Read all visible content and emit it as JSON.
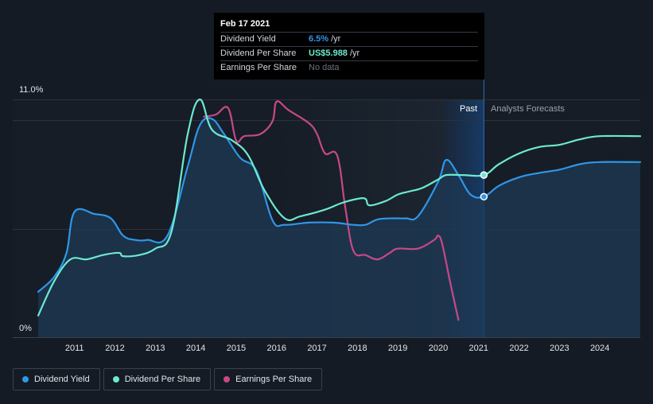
{
  "chart_data": {
    "type": "line",
    "title": "",
    "y_top_label": "11.0%",
    "y_bottom_label": "0%",
    "ylim": [
      0,
      11
    ],
    "xlim": [
      2010.1,
      2025.0
    ],
    "x_ticks": [
      "2011",
      "2012",
      "2013",
      "2014",
      "2015",
      "2016",
      "2017",
      "2018",
      "2019",
      "2020",
      "2021",
      "2022",
      "2023",
      "2024"
    ],
    "past_label": "Past",
    "forecast_label": "Analysts Forecasts",
    "forecast_start": 2020.15,
    "current_date": 2021.13,
    "colors": {
      "dividend_yield": "#2f97e8",
      "dividend_per_share": "#6de9d0",
      "earnings_per_share": "#c74887",
      "area_fill": "#1d3a55",
      "forecast_band": "#173a63"
    },
    "series": [
      {
        "name": "Dividend Yield",
        "key": "dividend_yield",
        "points": [
          [
            2010.1,
            2.1
          ],
          [
            2010.5,
            2.8
          ],
          [
            2010.8,
            3.9
          ],
          [
            2011.0,
            5.8
          ],
          [
            2011.5,
            5.7
          ],
          [
            2011.9,
            5.5
          ],
          [
            2012.2,
            4.7
          ],
          [
            2012.5,
            4.5
          ],
          [
            2012.8,
            4.5
          ],
          [
            2013.3,
            4.7
          ],
          [
            2013.8,
            7.9
          ],
          [
            2014.1,
            9.8
          ],
          [
            2014.4,
            10.1
          ],
          [
            2014.7,
            9.4
          ],
          [
            2015.1,
            8.3
          ],
          [
            2015.5,
            7.7
          ],
          [
            2015.9,
            5.4
          ],
          [
            2016.2,
            5.2
          ],
          [
            2016.8,
            5.3
          ],
          [
            2017.4,
            5.3
          ],
          [
            2017.9,
            5.2
          ],
          [
            2018.2,
            5.2
          ],
          [
            2018.5,
            5.45
          ],
          [
            2018.9,
            5.5
          ],
          [
            2019.2,
            5.5
          ],
          [
            2019.5,
            5.6
          ],
          [
            2020.0,
            7.2
          ],
          [
            2020.2,
            8.2
          ],
          [
            2020.5,
            7.5
          ],
          [
            2020.8,
            6.6
          ],
          [
            2021.13,
            6.5
          ],
          [
            2021.5,
            7.0
          ],
          [
            2022.0,
            7.4
          ],
          [
            2022.5,
            7.6
          ],
          [
            2023.0,
            7.75
          ],
          [
            2023.5,
            8.0
          ],
          [
            2024.0,
            8.1
          ],
          [
            2025.0,
            8.1
          ]
        ]
      },
      {
        "name": "Dividend Per Share",
        "key": "dividend_per_share",
        "points": [
          [
            2010.1,
            1.0
          ],
          [
            2010.5,
            2.6
          ],
          [
            2010.9,
            3.6
          ],
          [
            2011.3,
            3.6
          ],
          [
            2011.7,
            3.8
          ],
          [
            2012.1,
            3.9
          ],
          [
            2012.2,
            3.75
          ],
          [
            2012.6,
            3.8
          ],
          [
            2013.0,
            4.1
          ],
          [
            2013.4,
            4.9
          ],
          [
            2013.8,
            9.4
          ],
          [
            2014.1,
            11.0
          ],
          [
            2014.4,
            9.6
          ],
          [
            2014.9,
            9.1
          ],
          [
            2015.3,
            8.4
          ],
          [
            2015.7,
            6.8
          ],
          [
            2016.2,
            5.5
          ],
          [
            2016.6,
            5.6
          ],
          [
            2017.2,
            5.9
          ],
          [
            2017.6,
            6.2
          ],
          [
            2018.0,
            6.4
          ],
          [
            2018.2,
            6.4
          ],
          [
            2018.3,
            6.1
          ],
          [
            2018.7,
            6.3
          ],
          [
            2019.0,
            6.6
          ],
          [
            2019.3,
            6.75
          ],
          [
            2019.6,
            6.9
          ],
          [
            2020.0,
            7.3
          ],
          [
            2020.2,
            7.5
          ],
          [
            2020.6,
            7.5
          ],
          [
            2021.13,
            7.5
          ],
          [
            2021.5,
            8.0
          ],
          [
            2022.0,
            8.5
          ],
          [
            2022.5,
            8.8
          ],
          [
            2023.0,
            8.9
          ],
          [
            2023.5,
            9.15
          ],
          [
            2024.0,
            9.3
          ],
          [
            2025.0,
            9.3
          ]
        ]
      },
      {
        "name": "Earnings Per Share",
        "key": "earnings_per_share",
        "points": [
          [
            2014.2,
            10.2
          ],
          [
            2014.5,
            10.3
          ],
          [
            2014.8,
            10.6
          ],
          [
            2015.0,
            9.1
          ],
          [
            2015.2,
            9.3
          ],
          [
            2015.6,
            9.4
          ],
          [
            2015.9,
            10.0
          ],
          [
            2016.0,
            10.9
          ],
          [
            2016.3,
            10.5
          ],
          [
            2016.8,
            9.9
          ],
          [
            2017.0,
            9.4
          ],
          [
            2017.2,
            8.5
          ],
          [
            2017.5,
            8.4
          ],
          [
            2017.7,
            6.0
          ],
          [
            2017.9,
            4.0
          ],
          [
            2018.2,
            3.8
          ],
          [
            2018.5,
            3.6
          ],
          [
            2018.8,
            3.9
          ],
          [
            2019.0,
            4.1
          ],
          [
            2019.5,
            4.1
          ],
          [
            2019.9,
            4.5
          ],
          [
            2020.0,
            4.7
          ],
          [
            2020.1,
            4.3
          ],
          [
            2020.3,
            2.5
          ],
          [
            2020.5,
            0.8
          ]
        ]
      }
    ]
  },
  "tooltip": {
    "date": "Feb 17 2021",
    "rows": [
      {
        "label": "Dividend Yield",
        "value": "6.5%",
        "unit": "/yr",
        "color": "#2f97e8"
      },
      {
        "label": "Dividend Per Share",
        "value": "US$5.988",
        "unit": "/yr",
        "color": "#6de9d0"
      },
      {
        "label": "Earnings Per Share",
        "value": "",
        "unit": "No data",
        "color": "#6b7380"
      }
    ]
  },
  "legend": [
    {
      "label": "Dividend Yield",
      "color": "#2f97e8"
    },
    {
      "label": "Dividend Per Share",
      "color": "#6de9d0"
    },
    {
      "label": "Earnings Per Share",
      "color": "#c74887"
    }
  ]
}
